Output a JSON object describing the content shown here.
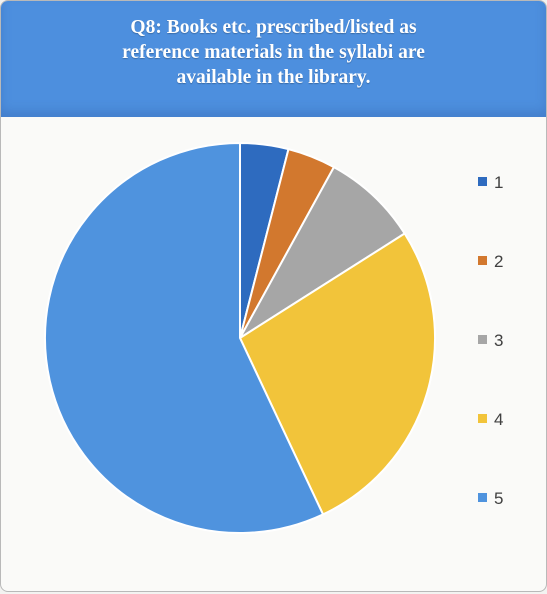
{
  "chart_data": {
    "type": "pie",
    "title": "Q8: Books etc. prescribed/listed as reference materials in the syllabi are available in the library.",
    "title_lines": [
      "Q8: Books etc. prescribed/listed as",
      "reference materials in the syllabi are",
      "available in the library."
    ],
    "categories": [
      "1",
      "2",
      "3",
      "4",
      "5"
    ],
    "values": [
      4,
      4,
      8,
      27,
      57
    ],
    "colors": [
      "#2e6bbf",
      "#d2782e",
      "#a6a6a6",
      "#f2c43a",
      "#4f93de"
    ],
    "legend_position": "right",
    "start_angle_deg": 0,
    "direction": "clockwise"
  }
}
